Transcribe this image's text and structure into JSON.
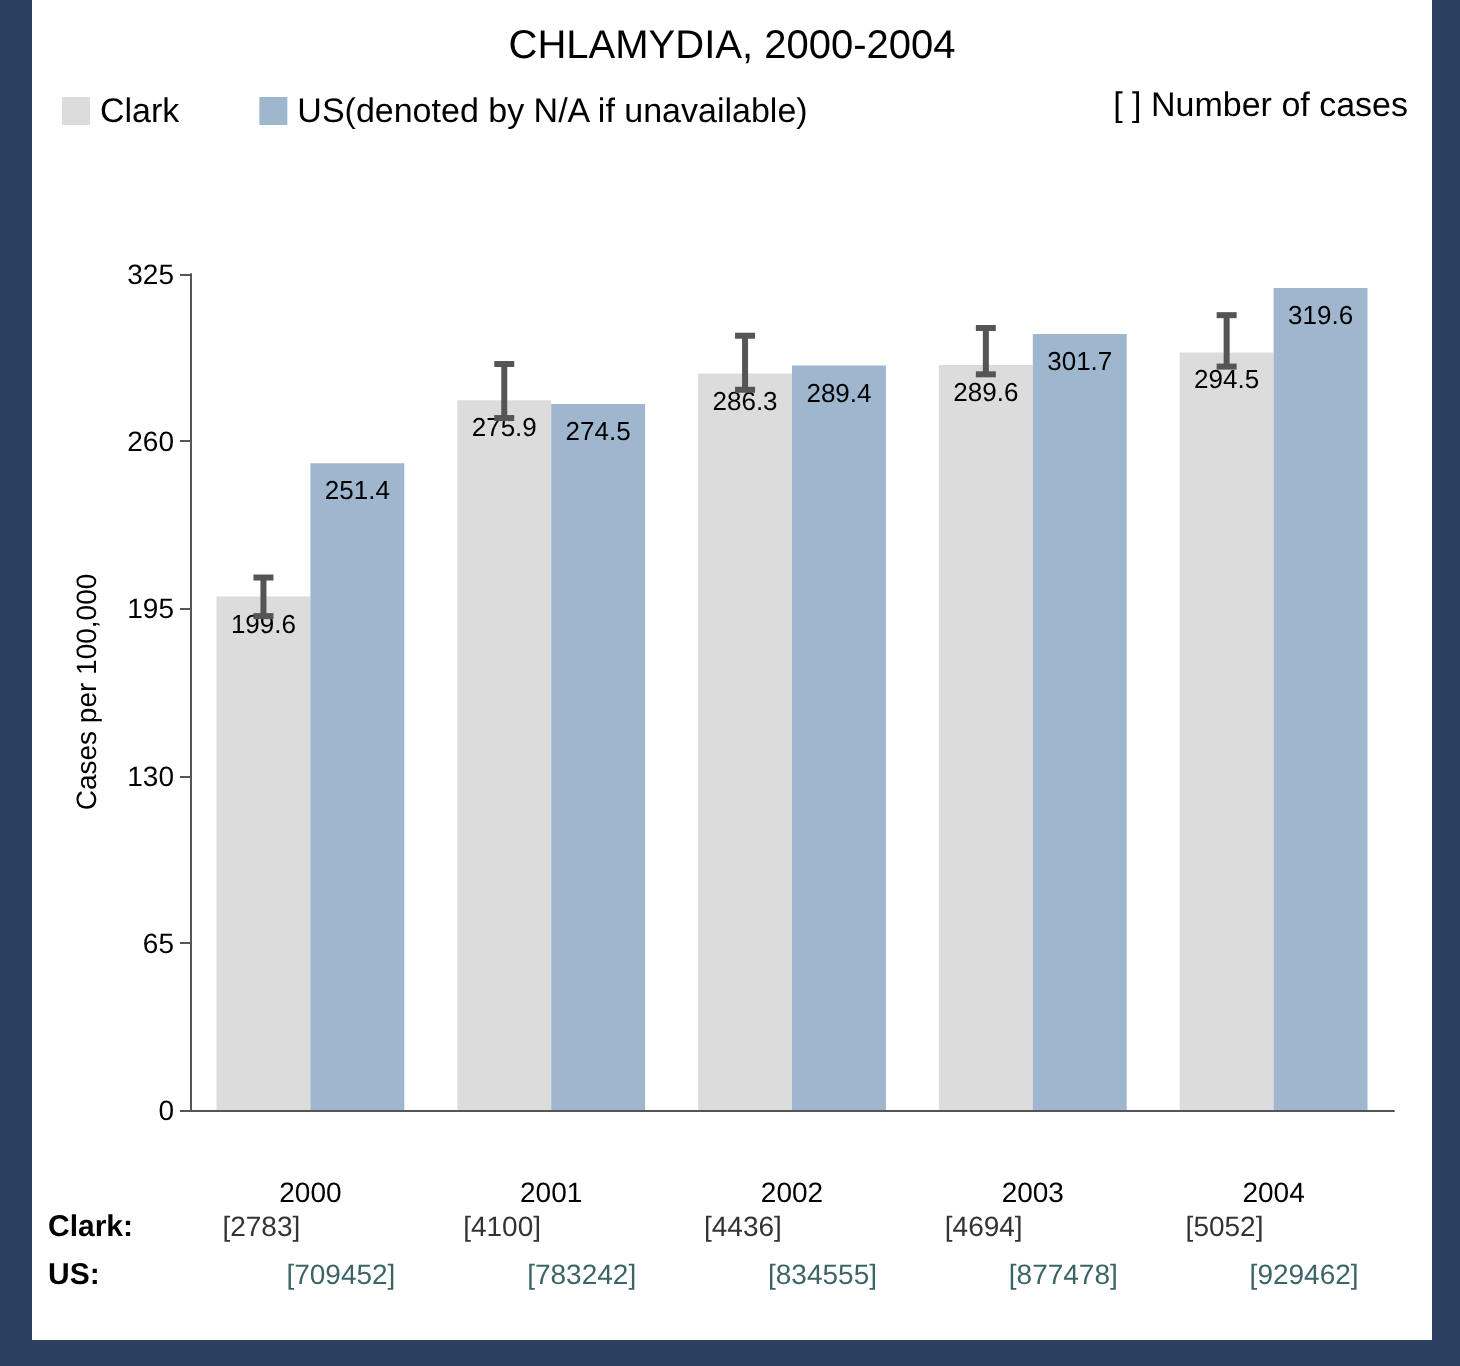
{
  "chart_data": {
    "type": "bar",
    "title": "CHLAMYDIA, 2000-2004",
    "ylabel": "Cases per 100,000",
    "categories": [
      "2000",
      "2001",
      "2002",
      "2003",
      "2004"
    ],
    "series": [
      {
        "name": "Clark",
        "color": "#dcdcdc",
        "values": [
          199.6,
          275.9,
          286.3,
          289.6,
          294.5
        ],
        "errors": [
          [
            192,
            207
          ],
          [
            269,
            290
          ],
          [
            280,
            301
          ],
          [
            286,
            304
          ],
          [
            289,
            309
          ]
        ]
      },
      {
        "name": "US(denoted by N/A if unavailable)",
        "color": "#9fb6cf",
        "values": [
          251.4,
          274.5,
          289.4,
          301.7,
          319.6
        ]
      }
    ],
    "ylim": [
      0,
      325
    ],
    "yticks": [
      0,
      65,
      130,
      195,
      260,
      325
    ],
    "grid": false,
    "legend": "top",
    "data_labels": true,
    "annotations": [
      "[ ] Number of cases",
      "Clark:",
      "[2783]",
      "[4100]",
      "[4436]",
      "[4694]",
      "[5052]",
      "US:",
      "[709452]",
      "[783242]",
      "[834555]",
      "[877478]",
      "[929462]"
    ]
  }
}
